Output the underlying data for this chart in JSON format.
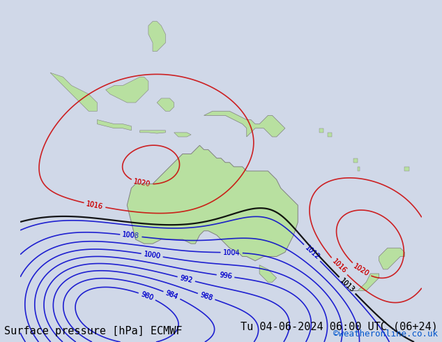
{
  "title_left": "Surface pressure [hPa] ECMWF",
  "title_right": "Tu 04-06-2024 06:00 UTC (06+24)",
  "watermark": "©weatheronline.co.uk",
  "bg_color": "#d0d8e8",
  "land_color": "#b8e0a0",
  "land_color_dark": "#a8d090",
  "coast_color": "#808080",
  "sea_color": "#c8d4e8",
  "contour_colors": {
    "blue": "#0000cc",
    "red": "#cc0000",
    "black": "#000000"
  },
  "title_fontsize": 11,
  "watermark_fontsize": 9,
  "figsize": [
    6.34,
    4.9
  ],
  "dpi": 100
}
